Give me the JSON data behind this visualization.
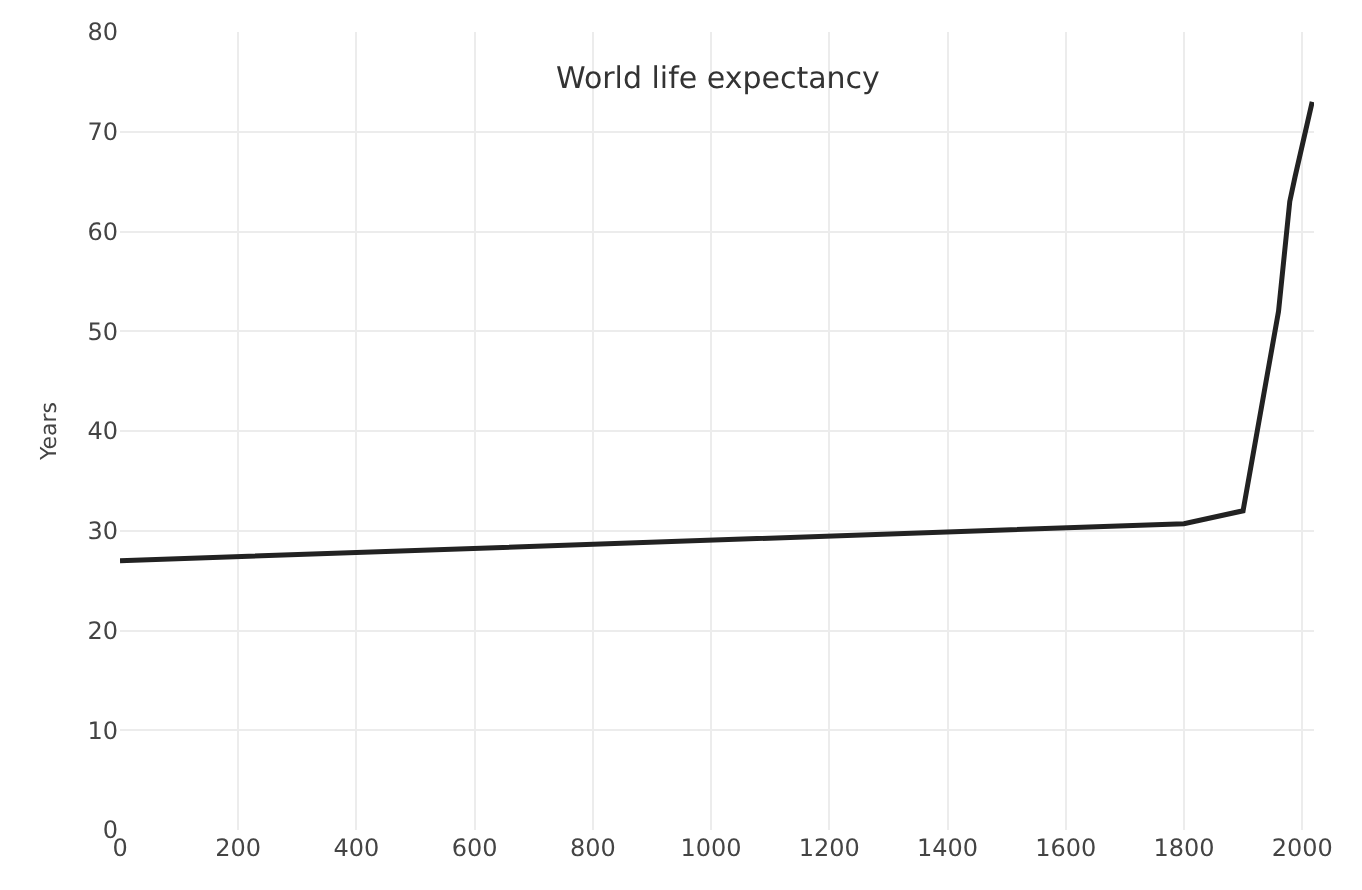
{
  "chart_data": {
    "type": "line",
    "title": "World life expectancy",
    "ylabel": "Years",
    "x": [
      0,
      1800,
      1900,
      1960,
      1979,
      1988,
      2017
    ],
    "series": [
      {
        "color": "#222222",
        "values": [
          27,
          30.7,
          32,
          52,
          63,
          65.5,
          73
        ]
      }
    ],
    "xlim": [
      0,
      2020
    ],
    "xticks": [
      0,
      200,
      400,
      600,
      800,
      1000,
      1200,
      1400,
      1600,
      1800,
      2000
    ],
    "ylim": [
      0,
      80
    ],
    "yticks": [
      0,
      10,
      20,
      30,
      40,
      50,
      60,
      70,
      80
    ],
    "grid": true,
    "marker": "none",
    "line_style": "solid"
  }
}
